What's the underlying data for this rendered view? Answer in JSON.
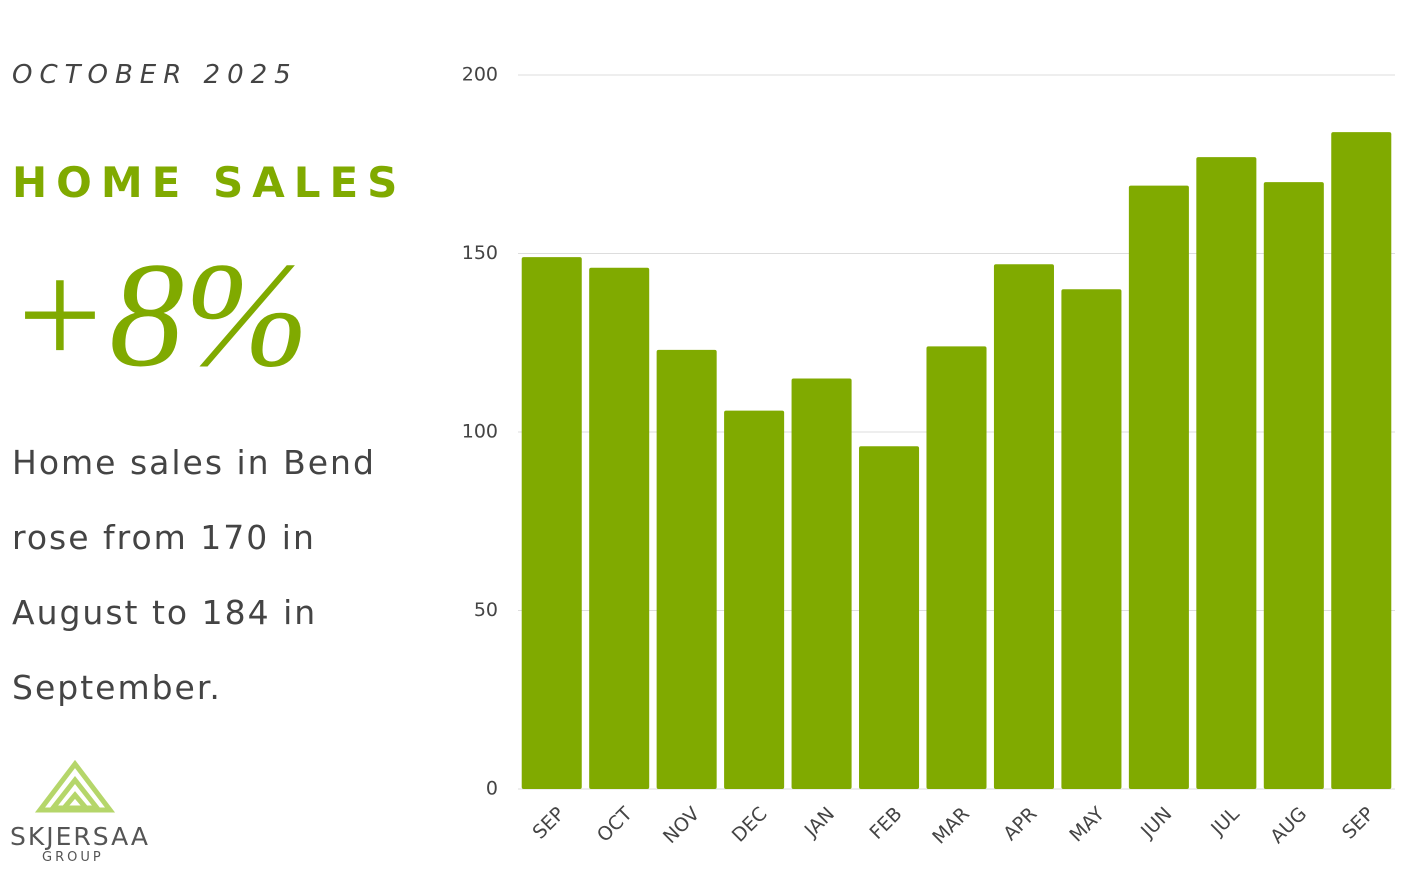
{
  "header": {
    "date": "OCTOBER 2025",
    "title": "HOME SALES",
    "change": "+8%",
    "description": "Home sales in Bend rose from 170 in August to 184 in September."
  },
  "logo": {
    "name": "SKJERSAA",
    "sub": "GROUP"
  },
  "chart_data": {
    "type": "bar",
    "categories": [
      "SEP",
      "OCT",
      "NOV",
      "DEC",
      "JAN",
      "FEB",
      "MAR",
      "APR",
      "MAY",
      "JUN",
      "JUL",
      "AUG",
      "SEP"
    ],
    "values": [
      149,
      146,
      123,
      106,
      115,
      96,
      124,
      147,
      140,
      169,
      177,
      170,
      184
    ],
    "color": "#80aa00",
    "ylim": [
      0,
      200
    ],
    "yticks": [
      0,
      50,
      100,
      150,
      200
    ],
    "grid": true
  }
}
